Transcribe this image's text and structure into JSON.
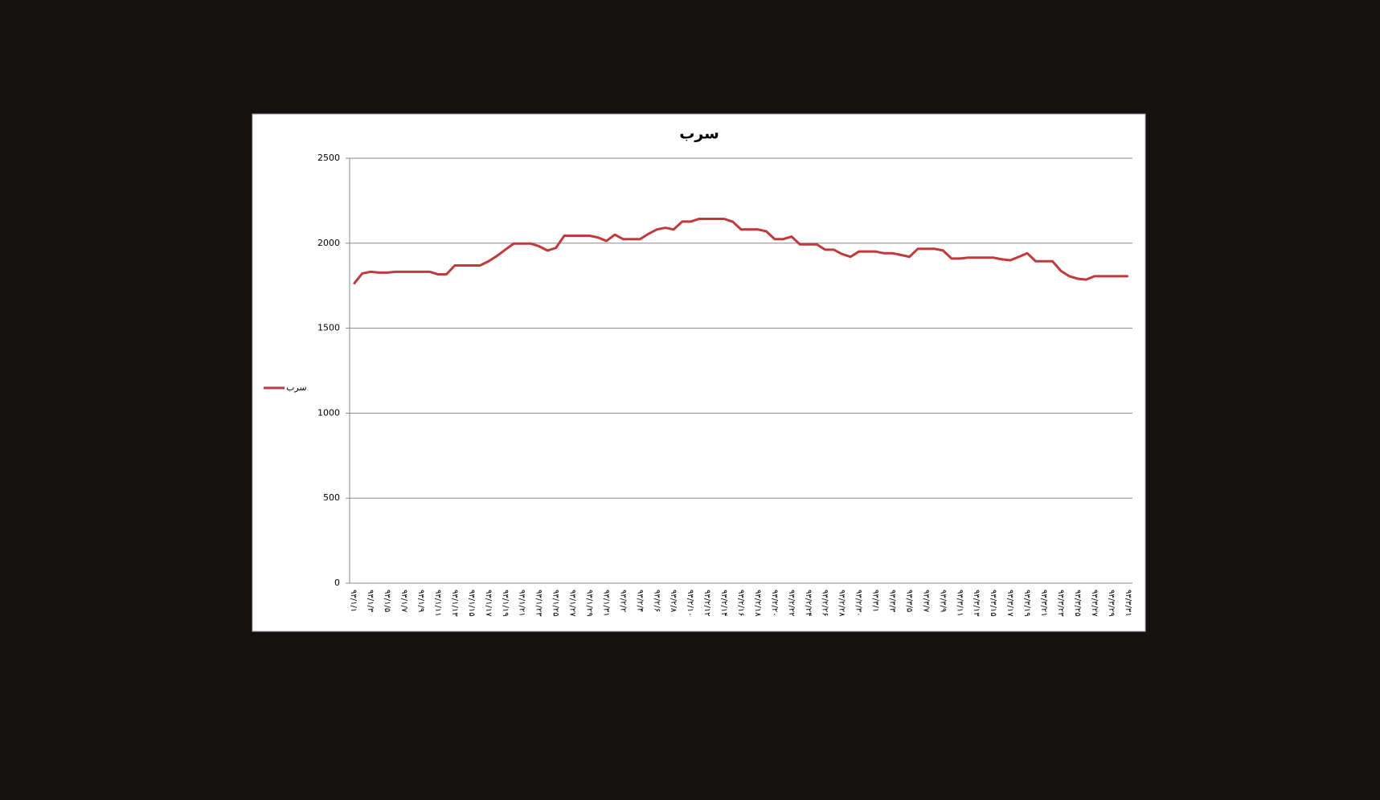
{
  "chart_data": {
    "type": "line",
    "title": "سرب",
    "categories": [
      "۹۳/۱/۱",
      null,
      "۹۳/۱/۳",
      null,
      "۹۳/۱/۵",
      null,
      "۹۳/۱/۷",
      null,
      "۹۳/۱/۹",
      null,
      "۹۳/۱/۱۱",
      null,
      "۹۳/۱/۱۳",
      null,
      "۹۳/۱/۱۵",
      null,
      "۹۳/۱/۱۷",
      null,
      "۹۳/۱/۱۹",
      null,
      "۹۳/۱/۲۱",
      null,
      "۹۳/۱/۲۳",
      null,
      "۹۳/۱/۲۵",
      null,
      "۹۳/۱/۲۷",
      null,
      "۹۳/۱/۲۹",
      null,
      "۹۳/۱/۳۱",
      null,
      "۹۳/۲/۲",
      null,
      "۹۳/۲/۴",
      null,
      "۹۳/۲/۶",
      null,
      "۹۳/۲/۸",
      null,
      "۹۳/۲/۱۰",
      null,
      "۹۳/۲/۱۲",
      null,
      "۹۳/۲/۱۴",
      null,
      "۹۳/۲/۱۶",
      null,
      "۹۳/۲/۱۸",
      null,
      "۹۳/۲/۲۰",
      null,
      "۹۳/۲/۲۲",
      null,
      "۹۳/۲/۲۴",
      null,
      "۹۳/۲/۲۶",
      null,
      "۹۳/۲/۲۸",
      null,
      "۹۳/۲/۳۰",
      null,
      "۹۳/۳/۱",
      null,
      "۹۳/۳/۳",
      null,
      "۹۳/۳/۵",
      null,
      "۹۳/۳/۷",
      null,
      "۹۳/۳/۹",
      null,
      "۹۳/۳/۱۱",
      null,
      "۹۳/۳/۱۳",
      null,
      "۹۳/۳/۱۵",
      null,
      "۹۳/۳/۱۷",
      null,
      "۹۳/۳/۱۹",
      null,
      "۹۳/۳/۲۱",
      null,
      "۹۳/۳/۲۳",
      null,
      "۹۳/۳/۲۵",
      null,
      "۹۳/۳/۲۷",
      null,
      "۹۳/۳/۲۹",
      null,
      "۹۳/۳/۳۱"
    ],
    "series": [
      {
        "name": "سرب",
        "color": "#c0393b",
        "values": [
          1760,
          1822,
          1832,
          1827,
          1827,
          1832,
          1832,
          1832,
          1832,
          1832,
          1817,
          1817,
          1869,
          1869,
          1869,
          1869,
          1894,
          1925,
          1962,
          1998,
          1998,
          1998,
          1982,
          1957,
          1972,
          2044,
          2044,
          2044,
          2044,
          2034,
          2013,
          2050,
          2024,
          2024,
          2024,
          2055,
          2081,
          2091,
          2081,
          2127,
          2127,
          2143,
          2143,
          2143,
          2143,
          2127,
          2081,
          2081,
          2081,
          2070,
          2024,
          2024,
          2039,
          1993,
          1993,
          1993,
          1962,
          1962,
          1936,
          1920,
          1951,
          1951,
          1951,
          1941,
          1941,
          1931,
          1920,
          1967,
          1967,
          1967,
          1957,
          1910,
          1910,
          1915,
          1915,
          1915,
          1915,
          1905,
          1900,
          1920,
          1941,
          1894,
          1894,
          1894,
          1837,
          1806,
          1791,
          1786,
          1806,
          1806,
          1806,
          1806,
          1806
        ]
      }
    ],
    "ylim": [
      0,
      2500
    ],
    "yticks": [
      0,
      500,
      1000,
      1500,
      2000,
      2500
    ],
    "grid": true,
    "legend": "left"
  }
}
